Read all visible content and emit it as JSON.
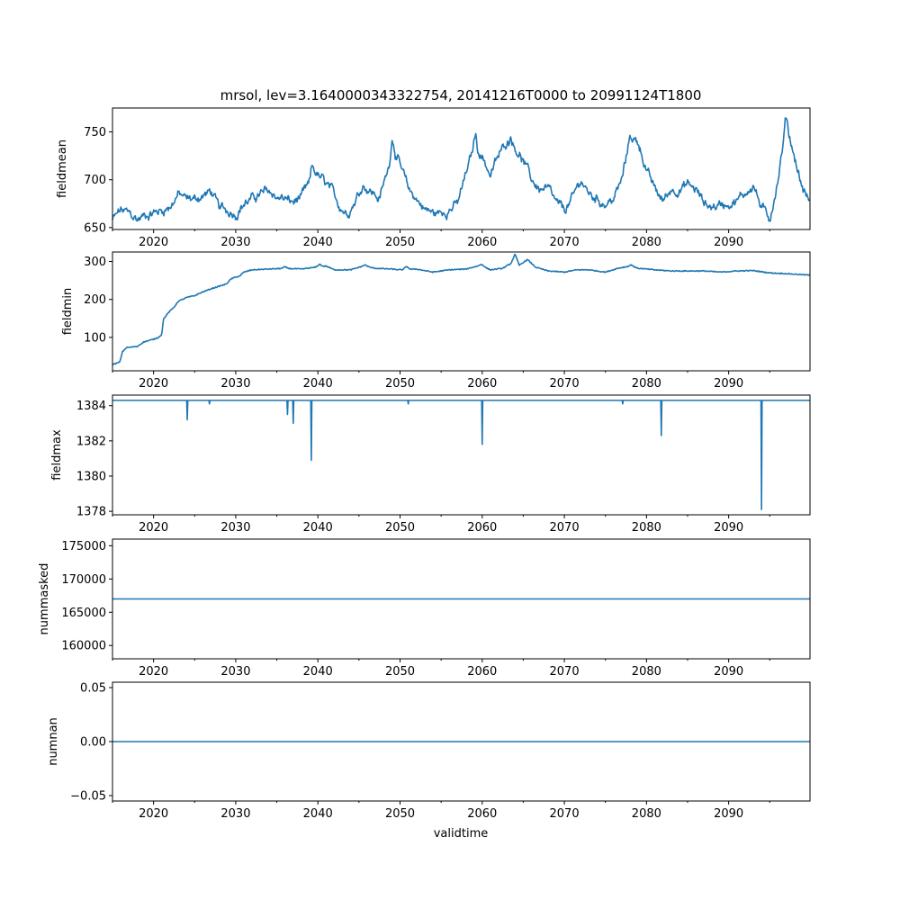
{
  "chart_data": {
    "title": "mrsol, lev=3.1640000343322754, 20141216T0000 to 20991124T1800",
    "xlabel": "validtime",
    "xlim": [
      2015.0,
      2099.9
    ],
    "x_major_ticks": [
      2020,
      2030,
      2040,
      2050,
      2060,
      2070,
      2080,
      2090
    ],
    "x_minor_ticks": [
      2015,
      2025,
      2035,
      2045,
      2055,
      2065,
      2075,
      2085,
      2095
    ],
    "colors": {
      "series": "#1f77b4",
      "axis": "#000000"
    },
    "panels": [
      {
        "type": "line",
        "ylabel": "fieldmean",
        "ylim": [
          648,
          775
        ],
        "yticks": [
          650,
          700,
          750
        ],
        "ytick_labels": [
          "650",
          "700",
          "750"
        ],
        "kind": "noisy",
        "anchors": [
          [
            2015.0,
            658
          ],
          [
            2016.0,
            668
          ],
          [
            2017.0,
            665
          ],
          [
            2018.0,
            658
          ],
          [
            2019.0,
            663
          ],
          [
            2020.0,
            666
          ],
          [
            2021.0,
            668
          ],
          [
            2022.0,
            672
          ],
          [
            2023.0,
            685
          ],
          [
            2024.0,
            680
          ],
          [
            2025.0,
            680
          ],
          [
            2026.0,
            683
          ],
          [
            2027.0,
            688
          ],
          [
            2028.0,
            670
          ],
          [
            2029.0,
            668
          ],
          [
            2030.0,
            665
          ],
          [
            2031.0,
            675
          ],
          [
            2032.0,
            680
          ],
          [
            2033.0,
            685
          ],
          [
            2034.0,
            688
          ],
          [
            2035.0,
            682
          ],
          [
            2036.0,
            680
          ],
          [
            2037.0,
            676
          ],
          [
            2038.0,
            682
          ],
          [
            2039.0,
            695
          ],
          [
            2039.6,
            708
          ],
          [
            2040.5,
            700
          ],
          [
            2041.5,
            690
          ],
          [
            2042.5,
            675
          ],
          [
            2043.5,
            665
          ],
          [
            2044.5,
            678
          ],
          [
            2045.5,
            695
          ],
          [
            2046.5,
            688
          ],
          [
            2047.5,
            680
          ],
          [
            2048.5,
            710
          ],
          [
            2049.2,
            735
          ],
          [
            2050.0,
            715
          ],
          [
            2051.0,
            690
          ],
          [
            2052.0,
            680
          ],
          [
            2053.0,
            670
          ],
          [
            2054.0,
            665
          ],
          [
            2055.0,
            665
          ],
          [
            2056.0,
            670
          ],
          [
            2057.0,
            675
          ],
          [
            2058.0,
            705
          ],
          [
            2059.0,
            735
          ],
          [
            2060.0,
            725
          ],
          [
            2061.0,
            705
          ],
          [
            2062.0,
            725
          ],
          [
            2063.0,
            740
          ],
          [
            2064.0,
            735
          ],
          [
            2065.0,
            720
          ],
          [
            2066.0,
            700
          ],
          [
            2067.0,
            690
          ],
          [
            2068.0,
            690
          ],
          [
            2069.0,
            675
          ],
          [
            2070.0,
            668
          ],
          [
            2071.0,
            680
          ],
          [
            2072.0,
            700
          ],
          [
            2073.0,
            685
          ],
          [
            2074.0,
            680
          ],
          [
            2075.0,
            675
          ],
          [
            2076.0,
            680
          ],
          [
            2077.0,
            700
          ],
          [
            2078.0,
            742
          ],
          [
            2079.0,
            740
          ],
          [
            2080.0,
            710
          ],
          [
            2081.0,
            690
          ],
          [
            2082.0,
            678
          ],
          [
            2083.0,
            690
          ],
          [
            2084.0,
            690
          ],
          [
            2085.0,
            695
          ],
          [
            2086.0,
            690
          ],
          [
            2087.0,
            676
          ],
          [
            2088.0,
            672
          ],
          [
            2089.0,
            674
          ],
          [
            2090.0,
            676
          ],
          [
            2091.0,
            678
          ],
          [
            2092.0,
            686
          ],
          [
            2093.0,
            695
          ],
          [
            2094.0,
            670
          ],
          [
            2095.0,
            660
          ],
          [
            2096.0,
            700
          ],
          [
            2097.0,
            760
          ],
          [
            2098.0,
            725
          ],
          [
            2099.0,
            690
          ],
          [
            2099.9,
            678
          ]
        ],
        "spikes": [
          [
            2097.0,
            768
          ],
          [
            2078.0,
            750
          ],
          [
            2059.2,
            748
          ],
          [
            2063.5,
            749
          ],
          [
            2049.0,
            744
          ],
          [
            2039.3,
            715
          ]
        ]
      },
      {
        "type": "line",
        "ylabel": "fieldmin",
        "ylim": [
          12,
          325
        ],
        "yticks": [
          100,
          200,
          300
        ],
        "ytick_labels": [
          "100",
          "200",
          "300"
        ],
        "kind": "smooth",
        "anchors": [
          [
            2015.0,
            28
          ],
          [
            2015.9,
            35
          ],
          [
            2016.2,
            62
          ],
          [
            2016.7,
            73
          ],
          [
            2018.0,
            76
          ],
          [
            2018.8,
            88
          ],
          [
            2020.0,
            95
          ],
          [
            2020.6,
            100
          ],
          [
            2021.0,
            108
          ],
          [
            2021.2,
            148
          ],
          [
            2021.8,
            165
          ],
          [
            2022.5,
            180
          ],
          [
            2023.0,
            195
          ],
          [
            2024.0,
            205
          ],
          [
            2025.0,
            210
          ],
          [
            2026.0,
            220
          ],
          [
            2027.0,
            228
          ],
          [
            2028.0,
            235
          ],
          [
            2028.8,
            240
          ],
          [
            2029.5,
            255
          ],
          [
            2030.5,
            262
          ],
          [
            2031.0,
            272
          ],
          [
            2032.0,
            278
          ],
          [
            2034.0,
            280
          ],
          [
            2036.0,
            282
          ],
          [
            2038.0,
            280
          ],
          [
            2039.8,
            285
          ],
          [
            2041.0,
            288
          ],
          [
            2042.0,
            278
          ],
          [
            2044.0,
            278
          ],
          [
            2045.5,
            288
          ],
          [
            2047.0,
            282
          ],
          [
            2049.0,
            280
          ],
          [
            2050.0,
            278
          ],
          [
            2052.0,
            280
          ],
          [
            2054.0,
            272
          ],
          [
            2056.0,
            278
          ],
          [
            2058.0,
            280
          ],
          [
            2059.8,
            290
          ],
          [
            2061.0,
            278
          ],
          [
            2062.5,
            282
          ],
          [
            2063.5,
            295
          ],
          [
            2064.0,
            318
          ],
          [
            2064.5,
            290
          ],
          [
            2065.5,
            305
          ],
          [
            2066.5,
            285
          ],
          [
            2068.0,
            275
          ],
          [
            2070.0,
            272
          ],
          [
            2071.5,
            278
          ],
          [
            2073.0,
            278
          ],
          [
            2075.0,
            272
          ],
          [
            2076.5,
            282
          ],
          [
            2078.0,
            288
          ],
          [
            2079.0,
            282
          ],
          [
            2081.0,
            278
          ],
          [
            2083.0,
            275
          ],
          [
            2085.0,
            275
          ],
          [
            2087.0,
            275
          ],
          [
            2089.0,
            272
          ],
          [
            2091.0,
            275
          ],
          [
            2093.0,
            276
          ],
          [
            2095.0,
            270
          ],
          [
            2097.0,
            268
          ],
          [
            2099.9,
            264
          ]
        ],
        "bumps": [
          [
            2036.0,
            287
          ],
          [
            2040.2,
            295
          ],
          [
            2045.8,
            292
          ],
          [
            2050.8,
            290
          ],
          [
            2060.0,
            293
          ],
          [
            2078.2,
            292
          ],
          [
            2064.0,
            320
          ]
        ]
      },
      {
        "type": "line",
        "ylabel": "fieldmax",
        "ylim": [
          1377.8,
          1384.6
        ],
        "yticks": [
          1378,
          1380,
          1382,
          1384
        ],
        "ytick_labels": [
          "1378",
          "1380",
          "1382",
          "1384"
        ],
        "kind": "baseline-spikes",
        "baseline": 1384.3,
        "spikes": [
          [
            2024.1,
            1383.2
          ],
          [
            2026.8,
            1384.1
          ],
          [
            2036.3,
            1383.5
          ],
          [
            2037.0,
            1383.0
          ],
          [
            2039.2,
            1380.9
          ],
          [
            2051.0,
            1384.1
          ],
          [
            2060.0,
            1381.8
          ],
          [
            2077.1,
            1384.1
          ],
          [
            2081.8,
            1382.3
          ],
          [
            2094.0,
            1378.1
          ]
        ]
      },
      {
        "type": "line",
        "ylabel": "nummasked",
        "ylim": [
          158000,
          176000
        ],
        "yticks": [
          160000,
          165000,
          170000,
          175000
        ],
        "ytick_labels": [
          "160000",
          "165000",
          "170000",
          "175000"
        ],
        "kind": "constant",
        "value": 167000
      },
      {
        "type": "line",
        "ylabel": "numnan",
        "ylim": [
          -0.055,
          0.055
        ],
        "yticks": [
          -0.05,
          0.0,
          0.05
        ],
        "ytick_labels": [
          "−0.05",
          "0.00",
          "0.05"
        ],
        "kind": "constant",
        "value": 0.0
      }
    ]
  }
}
